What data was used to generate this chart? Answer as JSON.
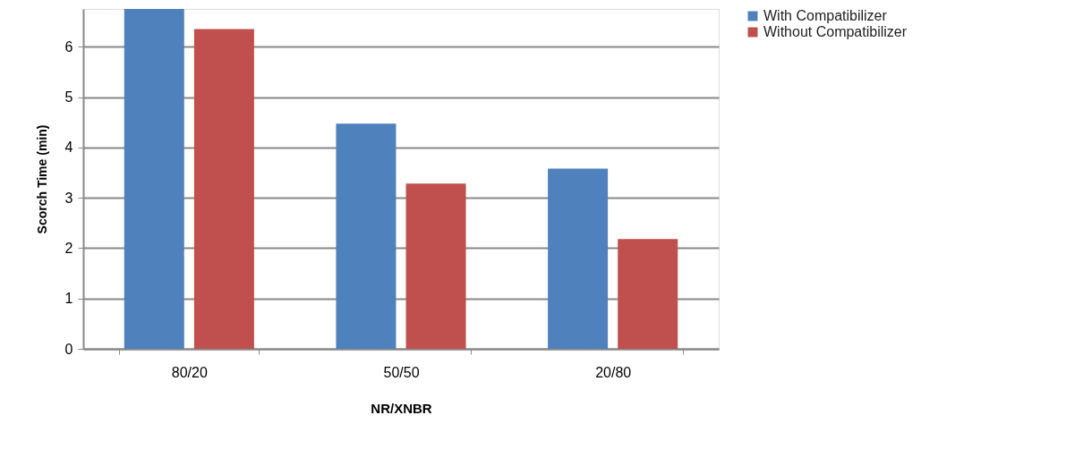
{
  "chart_data": {
    "type": "bar",
    "xlabel": "NR/XNBR",
    "ylabel": "Scorch Time (min)",
    "categories": [
      "80/20",
      "50/50",
      "20/80"
    ],
    "series": [
      {
        "name": "With Compatibilizer",
        "color": "#4f81bd",
        "values": [
          6.75,
          4.47,
          3.58
        ]
      },
      {
        "name": "Without Compatibilizer",
        "color": "#c0504d",
        "values": [
          6.35,
          3.28,
          2.18
        ]
      }
    ],
    "ylim": [
      0,
      6.75
    ],
    "yticks": [
      0,
      1,
      2,
      3,
      4,
      5,
      6
    ],
    "grid": "y",
    "legend": "right"
  }
}
